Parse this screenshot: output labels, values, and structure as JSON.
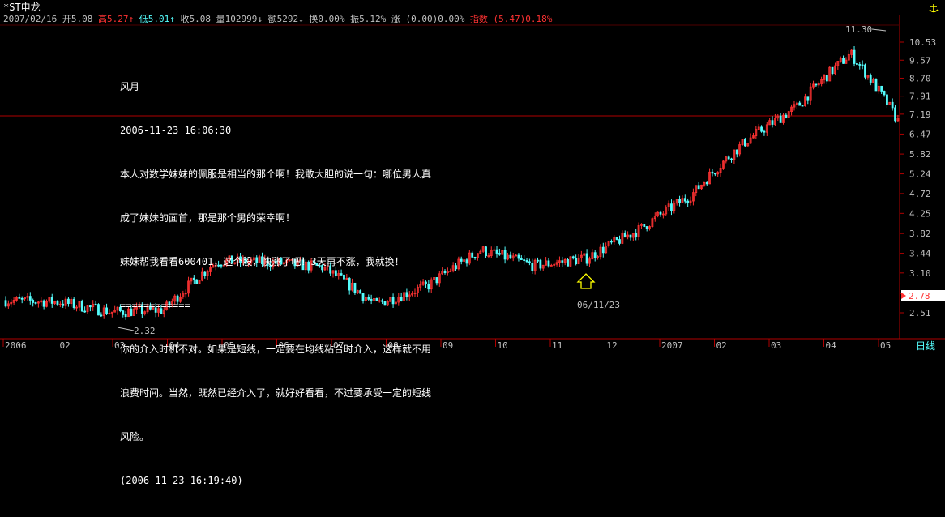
{
  "stock": {
    "name": "*ST申龙",
    "date": "2007/02/16",
    "open_label": "开",
    "open": "5.08",
    "high_label": "高",
    "high": "5.27",
    "low_label": "低",
    "low": "5.01",
    "close_label": "收",
    "close": "5.08",
    "volume_label": "量",
    "volume": "102999",
    "amount_label": "额",
    "amount": "5292",
    "turnover_label": "换",
    "turnover": "0.00%",
    "amplitude_label": "振",
    "amplitude": "5.12%",
    "change_label": "涨",
    "change": "(0.00)0.00%",
    "index_label": "指数",
    "index": "(5.47)0.18%"
  },
  "annotation": {
    "lines": [
      "风月",
      "2006-11-23 16:06:30",
      "本人对数学妹妹的佩服是相当的那个啊！我敢大胆的说一句：哪位男人真",
      "成了妹妹的面首，那是那个男的荣幸啊！",
      "妹妹帮我看看600401，这个股，快涨了吧！3天再不涨，我就换！",
      "============",
      "你的介入时机不对。如果是短线，一定要在均线粘合时介入，这样就不用",
      "浪费时间。当然，既然已经介入了，就好好看看，不过要承受一定的短线",
      "风险。",
      "(2006-11-23 16:19:40)"
    ]
  },
  "markers": {
    "high_label": "11.30",
    "low_label": "2.32",
    "arrow_label": "06/11/23",
    "current_price": "2.78"
  },
  "period_label": "日线",
  "colors": {
    "up": "#ff3232",
    "down": "#54fcfc",
    "text": "#c0c0c0",
    "axis": "#b00000",
    "arrow": "#ffff00",
    "current": "#ff3232"
  },
  "chart_data": {
    "type": "candlestick",
    "scale": "log",
    "y_ticks": [
      10.53,
      9.57,
      8.7,
      7.91,
      7.19,
      6.47,
      5.82,
      5.24,
      4.72,
      4.25,
      3.82,
      3.44,
      3.1,
      2.78,
      2.51
    ],
    "x_ticks": [
      "2006",
      "02",
      "03",
      "04",
      "05",
      "06",
      "07",
      "08",
      "09",
      "10",
      "11",
      "12",
      "2007",
      "02",
      "03",
      "04",
      "05"
    ],
    "ylim": [
      2.32,
      11.3
    ],
    "approx_series": [
      {
        "month": "2006-01",
        "close": 2.68
      },
      {
        "month": "2006-02",
        "close": 2.66
      },
      {
        "month": "2006-03",
        "close": 2.52
      },
      {
        "month": "2006-04",
        "close": 2.55
      },
      {
        "month": "2006-05",
        "close": 3.3
      },
      {
        "month": "2006-06",
        "close": 3.28
      },
      {
        "month": "2006-07",
        "close": 3.2
      },
      {
        "month": "2006-08",
        "close": 2.62
      },
      {
        "month": "2006-09",
        "close": 2.9
      },
      {
        "month": "2006-10",
        "close": 3.5
      },
      {
        "month": "2006-11",
        "close": 3.22
      },
      {
        "month": "2006-12",
        "close": 3.35
      },
      {
        "month": "2007-01",
        "close": 3.9
      },
      {
        "month": "2007-02",
        "close": 4.7
      },
      {
        "month": "2007-03",
        "close": 6.2
      },
      {
        "month": "2007-04",
        "close": 7.5
      },
      {
        "month": "2007-05",
        "close": 9.9
      },
      {
        "month": "2007-06",
        "close": 6.6
      }
    ]
  }
}
